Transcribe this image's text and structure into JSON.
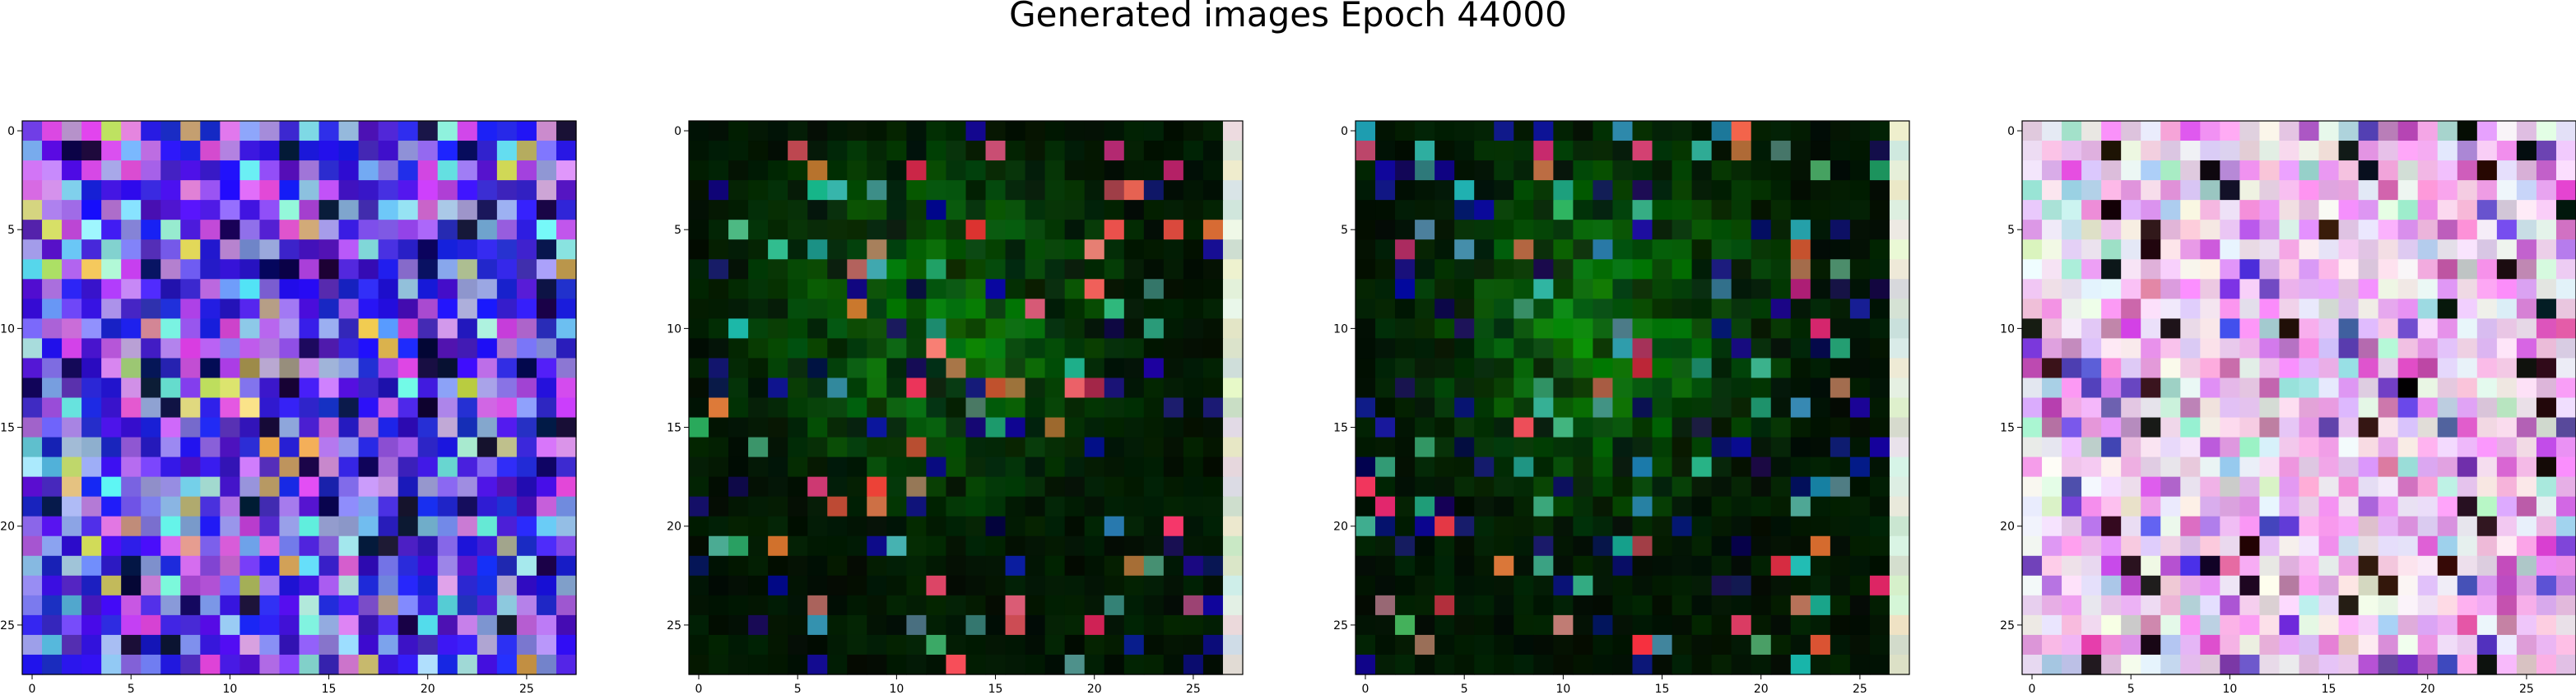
{
  "figure": {
    "title": "Generated images Epoch 44000"
  },
  "chart_data": [
    {
      "type": "heatmap",
      "palette": "blue-purple",
      "x_ticks": [
        0,
        5,
        10,
        15,
        20,
        25
      ],
      "y_ticks": [
        0,
        5,
        10,
        15,
        20,
        25
      ],
      "xlim": [
        -0.5,
        27.5
      ],
      "ylim": [
        27.5,
        -0.5
      ],
      "grid": false
    },
    {
      "type": "heatmap",
      "palette": "dark-green",
      "x_ticks": [
        0,
        5,
        10,
        15,
        20,
        25
      ],
      "y_ticks": [
        0,
        5,
        10,
        15,
        20,
        25
      ],
      "xlim": [
        -0.5,
        27.5
      ],
      "ylim": [
        27.5,
        -0.5
      ],
      "grid": false
    },
    {
      "type": "heatmap",
      "palette": "dark-green",
      "x_ticks": [
        0,
        5,
        10,
        15,
        20,
        25
      ],
      "y_ticks": [
        0,
        5,
        10,
        15,
        20,
        25
      ],
      "xlim": [
        -0.5,
        27.5
      ],
      "ylim": [
        27.5,
        -0.5
      ],
      "grid": false
    },
    {
      "type": "heatmap",
      "palette": "pastel-pink",
      "x_ticks": [
        0,
        5,
        10,
        15,
        20,
        25
      ],
      "y_ticks": [
        0,
        5,
        10,
        15,
        20,
        25
      ],
      "xlim": [
        -0.5,
        27.5
      ],
      "ylim": [
        27.5,
        -0.5
      ],
      "grid": false
    }
  ]
}
